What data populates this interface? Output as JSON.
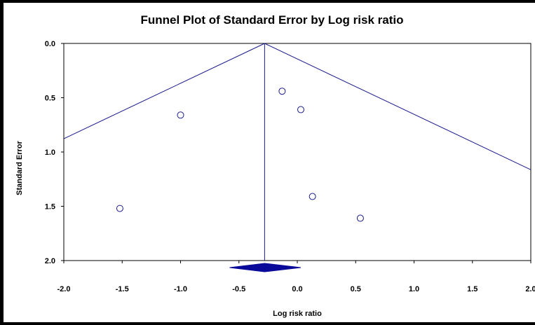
{
  "chart_data": {
    "type": "scatter",
    "title": "Funnel Plot of Standard Error by Log risk ratio",
    "xlabel": "Log risk ratio",
    "ylabel": "Standard Error",
    "xlim": [
      -2.0,
      2.0
    ],
    "ylim": [
      0.0,
      2.0
    ],
    "y_inverted": true,
    "x_ticks": [
      "-2.0",
      "-1.5",
      "-1.0",
      "-0.5",
      "0.0",
      "0.5",
      "1.0",
      "1.5",
      "2.0"
    ],
    "y_ticks": [
      "0.0",
      "0.5",
      "1.0",
      "1.5",
      "2.0"
    ],
    "grid": false,
    "summary_effect": -0.28,
    "summary_ci": [
      -0.58,
      0.03
    ],
    "points": [
      {
        "x": -1.52,
        "y": 1.52
      },
      {
        "x": -1.0,
        "y": 0.66
      },
      {
        "x": -0.13,
        "y": 0.44
      },
      {
        "x": 0.03,
        "y": 0.61
      },
      {
        "x": 0.13,
        "y": 1.41
      },
      {
        "x": 0.54,
        "y": 1.61
      }
    ],
    "colors": {
      "lines": "#1a1a8c",
      "markers": "#1a1a8c",
      "diamond": "#0a0a9a"
    }
  }
}
